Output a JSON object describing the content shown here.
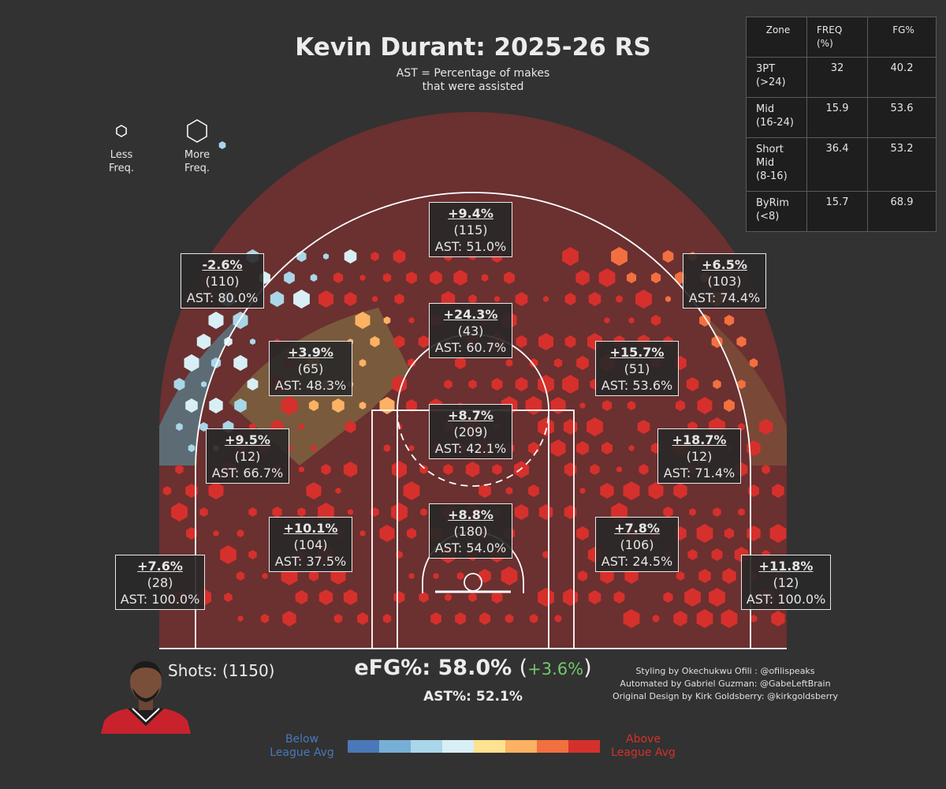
{
  "header": {
    "title": "Kevin Durant: 2025-26 RS",
    "subtitle_line1": "AST = Percentage of makes",
    "subtitle_line2": "that were assisted"
  },
  "size_legend": {
    "less_line1": "Less",
    "less_line2": "Freq.",
    "more_line1": "More",
    "more_line2": "Freq."
  },
  "zone_table": {
    "headers": [
      "Zone",
      "FREQ\n(%)",
      "FG%"
    ],
    "rows": [
      {
        "zone": "3PT\n(>24)",
        "freq": "32",
        "fg": "40.2"
      },
      {
        "zone": "Mid\n(16-24)",
        "freq": "15.9",
        "fg": "53.6"
      },
      {
        "zone": "Short\nMid\n(8-16)",
        "freq": "36.4",
        "fg": "53.2"
      },
      {
        "zone": "ByRim\n(<8)",
        "freq": "15.7",
        "fg": "68.9"
      }
    ]
  },
  "chart_data": {
    "type": "heatmap",
    "title": "Kevin Durant: 2025-26 RS",
    "zones": [
      {
        "id": "above-break-3-top",
        "diff": "+9.4%",
        "shots": "(115)",
        "ast": "AST: 51.0%"
      },
      {
        "id": "above-break-3-left",
        "diff": "-2.6%",
        "shots": "(110)",
        "ast": "AST: 80.0%"
      },
      {
        "id": "above-break-3-right",
        "diff": "+6.5%",
        "shots": "(103)",
        "ast": "AST: 74.4%"
      },
      {
        "id": "mid-top",
        "diff": "+24.3%",
        "shots": "(43)",
        "ast": "AST: 60.7%"
      },
      {
        "id": "mid-left-wing",
        "diff": "+3.9%",
        "shots": "(65)",
        "ast": "AST: 48.3%"
      },
      {
        "id": "mid-right-wing",
        "diff": "+15.7%",
        "shots": "(51)",
        "ast": "AST: 53.6%"
      },
      {
        "id": "short-mid-center",
        "diff": "+8.7%",
        "shots": "(209)",
        "ast": "AST: 42.1%"
      },
      {
        "id": "mid-left-baseline",
        "diff": "+9.5%",
        "shots": "(12)",
        "ast": "AST: 66.7%"
      },
      {
        "id": "mid-right-baseline",
        "diff": "+18.7%",
        "shots": "(12)",
        "ast": "AST: 71.4%"
      },
      {
        "id": "short-mid-left",
        "diff": "+10.1%",
        "shots": "(104)",
        "ast": "AST: 37.5%"
      },
      {
        "id": "restricted-area",
        "diff": "+8.8%",
        "shots": "(180)",
        "ast": "AST: 54.0%"
      },
      {
        "id": "short-mid-right",
        "diff": "+7.8%",
        "shots": "(106)",
        "ast": "AST: 24.5%"
      },
      {
        "id": "left-corner-3",
        "diff": "+7.6%",
        "shots": "(28)",
        "ast": "AST: 100.0%"
      },
      {
        "id": "right-corner-3",
        "diff": "+11.8%",
        "shots": "(12)",
        "ast": "AST: 100.0%"
      }
    ],
    "colorscale": [
      "#4a78b8",
      "#76afd6",
      "#a9d6e8",
      "#d8eff5",
      "#fde28f",
      "#fcb163",
      "#f2703f",
      "#d6302c"
    ],
    "colorscale_labels": {
      "low": "Below\nLeague Avg",
      "high": "Above\nLeague Avg"
    },
    "zone_fill_colors": {
      "above": "#6b3030",
      "below": "#5d7078",
      "orange": "#7a5a3c",
      "orange_red": "#7b4a38"
    }
  },
  "footer": {
    "shots": "Shots: (1150)",
    "efg": "eFG%: 58.0%",
    "efg_delta": "+3.6%",
    "ast_pct": "AST%: 52.1%",
    "credit1": "Styling by Okechukwu Ofili : @ofilispeaks",
    "credit2": "Automated by Gabriel Guzman: @GabeLeftBrain",
    "credit3": "Original Design by Kirk Goldsberry: @kirkgoldsberry",
    "below_label_1": "Below",
    "below_label_2": "League Avg",
    "above_label_1": "Above",
    "above_label_2": "League Avg",
    "below_color": "#4a78b8",
    "above_color": "#d6302c"
  }
}
